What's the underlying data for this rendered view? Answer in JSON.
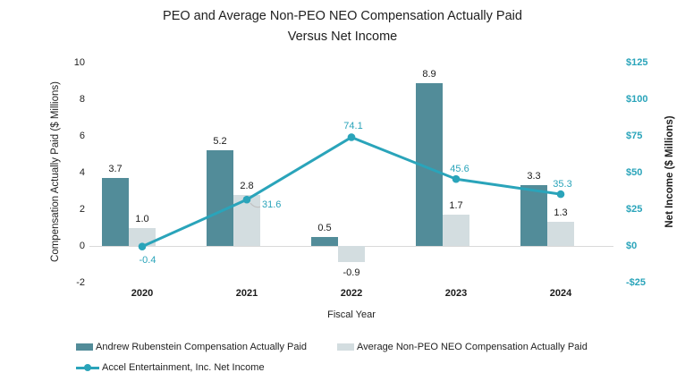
{
  "title": {
    "line1": "PEO and Average Non-PEO NEO Compensation Actually Paid",
    "line2": "Versus Net Income"
  },
  "chart_data": {
    "type": "bar+line",
    "categories": [
      "2020",
      "2021",
      "2022",
      "2023",
      "2024"
    ],
    "series": [
      {
        "name": "Andrew Rubenstein Compensation Actually Paid",
        "type": "bar",
        "axis": "left",
        "color": "#528C99",
        "values": [
          3.7,
          5.2,
          0.5,
          8.9,
          3.3
        ],
        "labels": [
          "3.7",
          "5.2",
          "0.5",
          "8.9",
          "3.3"
        ]
      },
      {
        "name": "Average Non-PEO NEO Compensation Actually Paid",
        "type": "bar",
        "axis": "left",
        "color": "#D3DDE0",
        "values": [
          1.0,
          2.8,
          -0.9,
          1.7,
          1.3
        ],
        "labels": [
          "1.0",
          "2.8",
          "-0.9",
          "1.7",
          "1.3"
        ]
      },
      {
        "name": "Accel Entertainment, Inc. Net Income",
        "type": "line",
        "axis": "right",
        "color": "#2AA4BA",
        "values": [
          -0.4,
          31.6,
          74.1,
          45.6,
          35.3
        ],
        "labels": [
          "-0.4",
          "31.6",
          "74.1",
          "45.6",
          "35.3"
        ]
      }
    ],
    "left_axis": {
      "label": "Compensation Actually Paid ($ Millions)",
      "min": -2,
      "max": 10,
      "tick_step": 2,
      "ticks": [
        "-2",
        "0",
        "2",
        "4",
        "6",
        "8",
        "10"
      ]
    },
    "right_axis": {
      "label": "Net Income ($ Millions)",
      "min": -25,
      "max": 125,
      "tick_step": 25,
      "ticks": [
        "-$25",
        "$0",
        "$25",
        "$50",
        "$75",
        "$100",
        "$125"
      ]
    },
    "x_axis": {
      "label": "Fiscal Year"
    },
    "legend_position": "bottom-left",
    "grid": "zero-line-only"
  },
  "colors": {
    "bar_peo": "#528C99",
    "bar_non_peo": "#D3DDE0",
    "line_net_income": "#2AA4BA",
    "teal_text": "#2AA4BA",
    "axis_line": "#D9D9D9",
    "leader_line": "#C0C0C0",
    "text": "#1F1F1F"
  }
}
